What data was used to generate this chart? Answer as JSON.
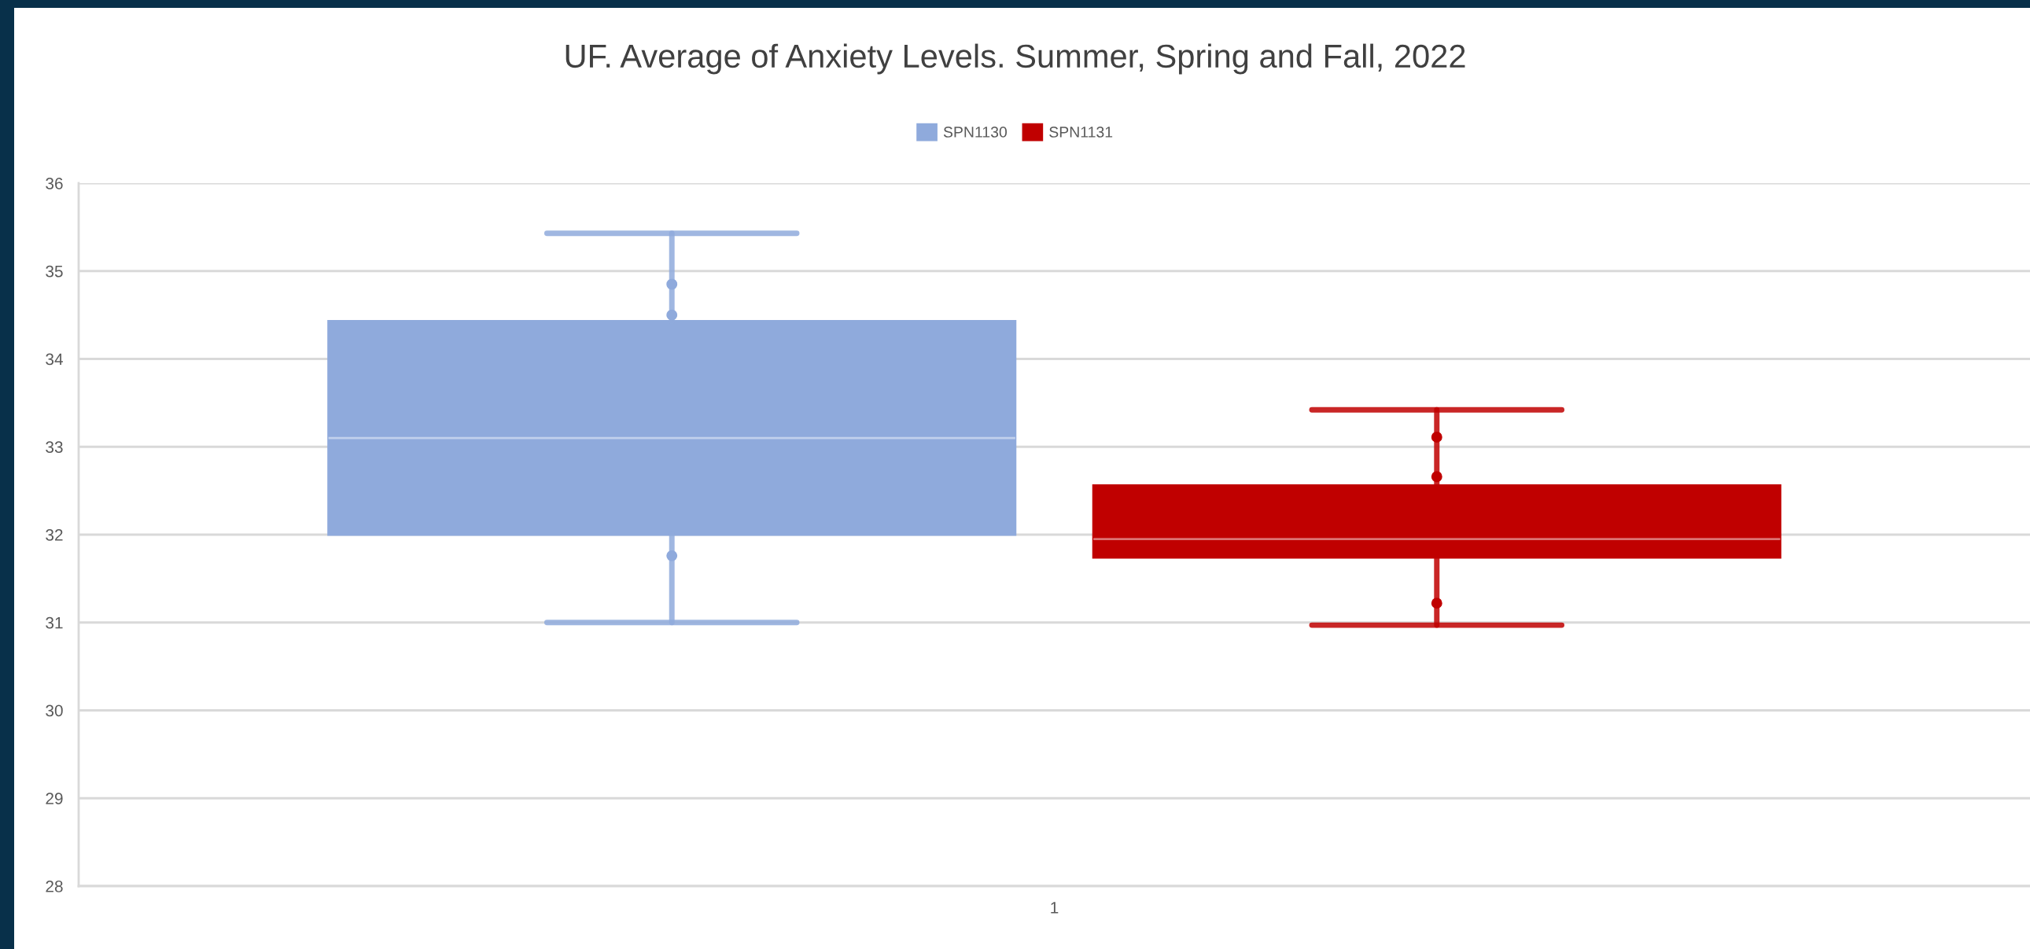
{
  "chart_data": {
    "type": "box",
    "title": "UF. Average of Anxiety Levels. Summer, Spring and Fall, 2022",
    "categories": [
      "1"
    ],
    "series": [
      {
        "name": "SPN1130",
        "color": "#8faadc",
        "boxes": [
          {
            "low": 31.0,
            "q1": 32.0,
            "median": 33.1,
            "q3": 34.43,
            "high": 35.43,
            "outliers": [
              34.85,
              34.5,
              31.76
            ]
          }
        ]
      },
      {
        "name": "SPN1131",
        "color": "#c00000",
        "boxes": [
          {
            "low": 30.97,
            "q1": 31.74,
            "median": 31.95,
            "q3": 32.56,
            "high": 33.42,
            "outliers": [
              33.11,
              32.66,
              31.22
            ]
          }
        ]
      }
    ],
    "ylim": [
      28,
      36
    ],
    "yticks": [
      28,
      29,
      30,
      31,
      32,
      33,
      34,
      35,
      36
    ],
    "grid": "y",
    "legend": "top"
  }
}
